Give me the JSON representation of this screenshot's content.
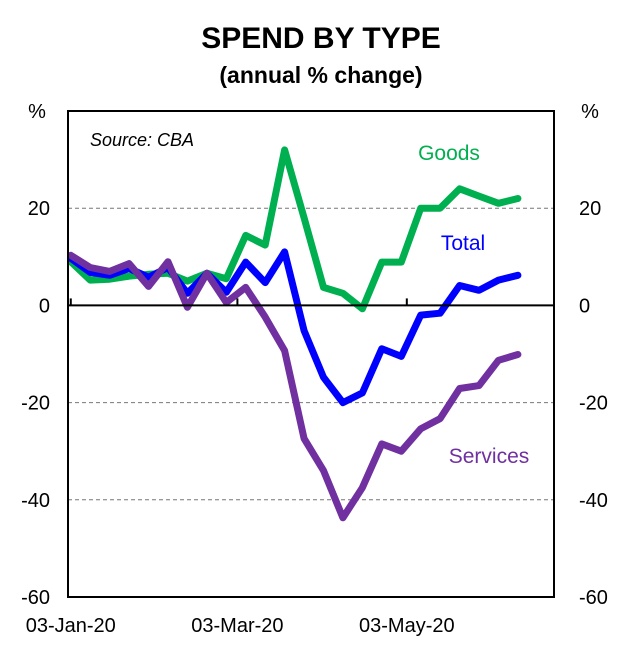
{
  "chart_data": {
    "type": "line",
    "title": "SPEND BY TYPE",
    "subtitle": "(annual % change)",
    "ylabel_left": "%",
    "ylabel_right": "%",
    "source": "Source: CBA",
    "x_unit": "days since 03-Jan-20 (weekly observations)",
    "x": [
      0,
      7,
      14,
      21,
      28,
      35,
      42,
      49,
      56,
      63,
      70,
      77,
      84,
      91,
      98,
      105,
      112,
      119,
      126,
      133,
      140,
      147,
      154,
      161
    ],
    "xlim": [
      -1,
      174
    ],
    "x_ticks": [
      {
        "value": 0,
        "label": "03-Jan-20"
      },
      {
        "value": 60,
        "label": "03-Mar-20"
      },
      {
        "value": 121,
        "label": "03-May-20"
      }
    ],
    "ylim": [
      -60,
      40
    ],
    "y_ticks": [
      -60,
      -40,
      -20,
      0,
      20
    ],
    "gridlines": [
      -40,
      -20,
      20
    ],
    "series": [
      {
        "name": "Goods",
        "color": "#00B050",
        "values": [
          9,
          5.2,
          5.4,
          6,
          6.4,
          6.6,
          5,
          6.6,
          5.5,
          14.4,
          12.4,
          32,
          18,
          3.7,
          2.5,
          -0.7,
          8.9,
          8.9,
          20,
          20,
          24,
          22.5,
          21,
          22
        ]
      },
      {
        "name": "Total",
        "color": "#0000FF",
        "values": [
          9.7,
          6.8,
          6.2,
          7.6,
          5.8,
          7.8,
          2.5,
          6.6,
          2.7,
          8.9,
          4.7,
          11,
          -5.2,
          -14.8,
          -20,
          -18,
          -8.9,
          -10.5,
          -2,
          -1.6,
          4.1,
          3.1,
          5.2,
          6.2
        ]
      },
      {
        "name": "Services",
        "color": "#7030A0",
        "values": [
          10.3,
          7.8,
          7,
          8.6,
          3.9,
          9,
          -0.4,
          6.6,
          0.6,
          3.7,
          -2.4,
          -9.3,
          -27.4,
          -34,
          -43.7,
          -37.5,
          -28.5,
          -30,
          -25.4,
          -23.3,
          -17.1,
          -16.5,
          -11.3,
          -10.1
        ]
      }
    ]
  }
}
